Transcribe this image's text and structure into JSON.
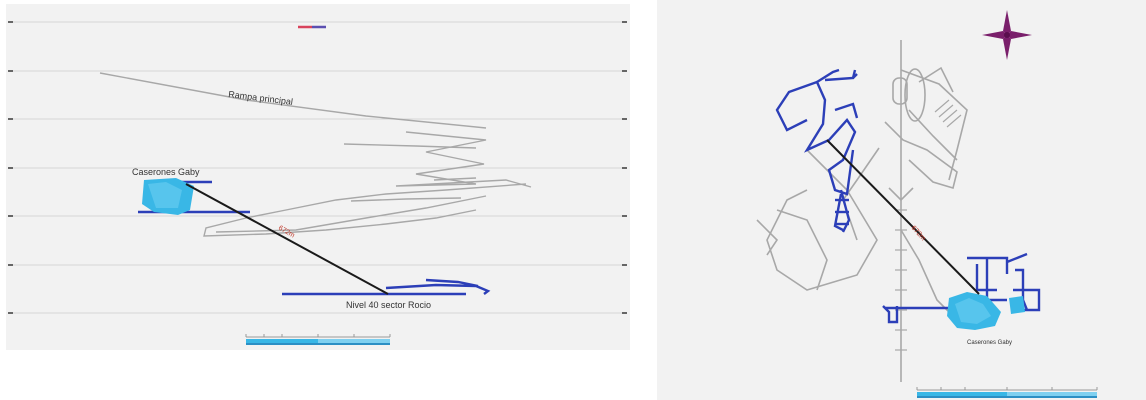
{
  "section_view": {
    "labels": {
      "main_ramp": "Rampa principal",
      "stopes": "Caserones Gaby",
      "level": "Nivel 40 sector Rocio",
      "distance": "672m"
    }
  },
  "plan_view": {
    "labels": {
      "stopes": "Caserones Gaby",
      "distance": "672m"
    }
  },
  "colors": {
    "background": "#f2f2f2",
    "existing_workings": "#a8a8a8",
    "new_workings": "#2c3fb8",
    "stope_fill": "#39b7e6",
    "connection_line": "#1a1a1a",
    "distance_label": "#c0392b",
    "north_star": "#7a1f6b"
  }
}
